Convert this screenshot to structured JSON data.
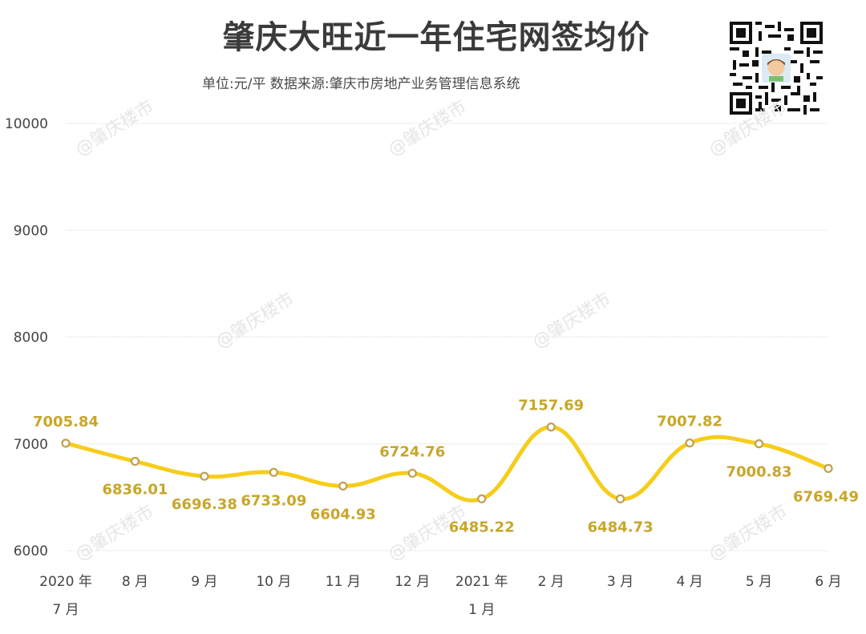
{
  "header": {
    "title": "肇庆大旺近一年住宅网签均价",
    "subtitle": "单位:元/平  数据来源:肇庆市房地产业务管理信息系统",
    "qr_icon": "qr-code-icon"
  },
  "watermark": "@肇庆楼市",
  "colors": {
    "line": "#f5cd1b",
    "marker_stroke": "#c0a050",
    "label": "#c8a62a",
    "grid": "#e5e5e5",
    "text": "#444444"
  },
  "chart_data": {
    "type": "line",
    "title": "肇庆大旺近一年住宅网签均价",
    "subtitle": "单位:元/平  数据来源:肇庆市房地产业务管理信息系统",
    "xlabel": "",
    "ylabel": "",
    "ylim": [
      6000,
      10000
    ],
    "yticks": [
      "10000",
      "9000",
      "8000",
      "7000",
      "6000"
    ],
    "grid": true,
    "legend": "none",
    "categories": [
      [
        "2020 年",
        "7 月"
      ],
      [
        "8 月"
      ],
      [
        "9 月"
      ],
      [
        "10 月"
      ],
      [
        "11 月"
      ],
      [
        "12 月"
      ],
      [
        "2021 年",
        "1 月"
      ],
      [
        "2 月"
      ],
      [
        "3 月"
      ],
      [
        "4 月"
      ],
      [
        "5 月"
      ],
      [
        "6 月"
      ]
    ],
    "series": [
      {
        "name": "住宅网签均价",
        "values": [
          7005.84,
          6836.01,
          6696.38,
          6733.09,
          6604.93,
          6724.76,
          6485.22,
          7157.69,
          6484.73,
          7007.82,
          7000.83,
          6769.49
        ],
        "labels": [
          "7005.84",
          "6836.01",
          "6696.38",
          "6733.09",
          "6604.93",
          "6724.76",
          "6485.22",
          "7157.69",
          "6484.73",
          "7007.82",
          "7000.83",
          "6769.49"
        ],
        "label_position": [
          "above",
          "below",
          "below",
          "below",
          "below",
          "above",
          "below",
          "above",
          "below",
          "above",
          "below",
          "below"
        ]
      }
    ]
  }
}
